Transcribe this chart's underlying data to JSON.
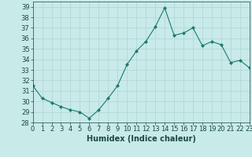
{
  "x": [
    0,
    1,
    2,
    3,
    4,
    5,
    6,
    7,
    8,
    9,
    10,
    11,
    12,
    13,
    14,
    15,
    16,
    17,
    18,
    19,
    20,
    21,
    22,
    23
  ],
  "y": [
    31.5,
    30.3,
    29.9,
    29.5,
    29.2,
    29.0,
    28.4,
    29.2,
    30.3,
    31.5,
    33.5,
    34.8,
    35.7,
    37.1,
    38.9,
    36.3,
    36.5,
    37.0,
    35.3,
    35.7,
    35.4,
    33.7,
    33.9,
    33.2
  ],
  "xlabel": "Humidex (Indice chaleur)",
  "xlim": [
    0,
    23
  ],
  "ylim": [
    28,
    39.5
  ],
  "yticks": [
    28,
    29,
    30,
    31,
    32,
    33,
    34,
    35,
    36,
    37,
    38,
    39
  ],
  "xticks": [
    0,
    1,
    2,
    3,
    4,
    5,
    6,
    7,
    8,
    9,
    10,
    11,
    12,
    13,
    14,
    15,
    16,
    17,
    18,
    19,
    20,
    21,
    22,
    23
  ],
  "line_color": "#1a7a6e",
  "marker": "D",
  "marker_size": 2.5,
  "bg_color": "#c8eae8",
  "grid_color": "#b0d5d2",
  "tick_color": "#1a4a40",
  "xlabel_color": "#1a4a40",
  "tick_fontsize": 6,
  "xlabel_fontsize": 7
}
